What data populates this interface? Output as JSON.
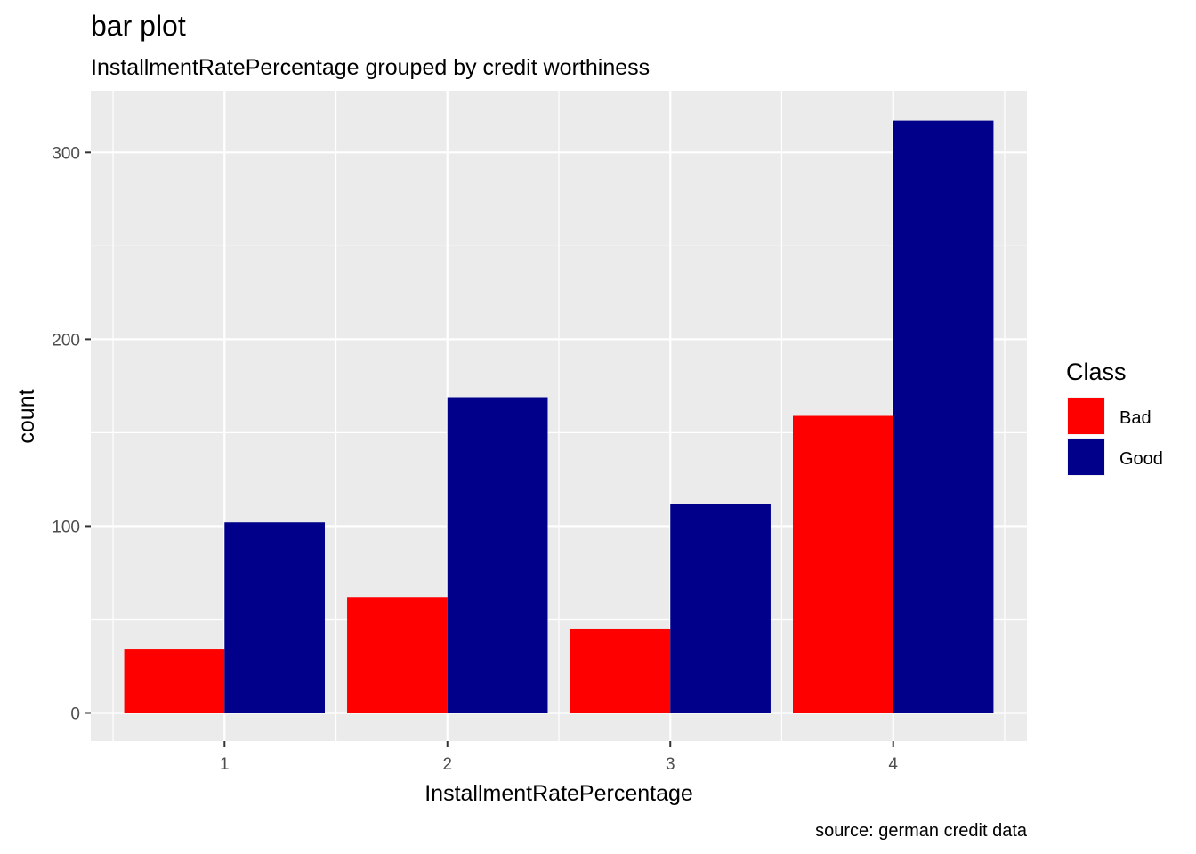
{
  "chart_data": {
    "type": "bar",
    "title": "bar plot",
    "subtitle": "InstallmentRatePercentage grouped by credit worthiness",
    "caption": "source: german credit data",
    "xlabel": "InstallmentRatePercentage",
    "ylabel": "count",
    "categories": [
      "1",
      "2",
      "3",
      "4"
    ],
    "series": [
      {
        "name": "Bad",
        "color": "#ff0000",
        "values": [
          34,
          62,
          45,
          159
        ]
      },
      {
        "name": "Good",
        "color": "#00008b",
        "values": [
          102,
          169,
          112,
          317
        ]
      }
    ],
    "ylim": [
      -15,
      333
    ],
    "yticks": [
      0,
      100,
      200,
      300
    ],
    "grid": true,
    "legend": {
      "title": "Class",
      "position": "right"
    }
  }
}
